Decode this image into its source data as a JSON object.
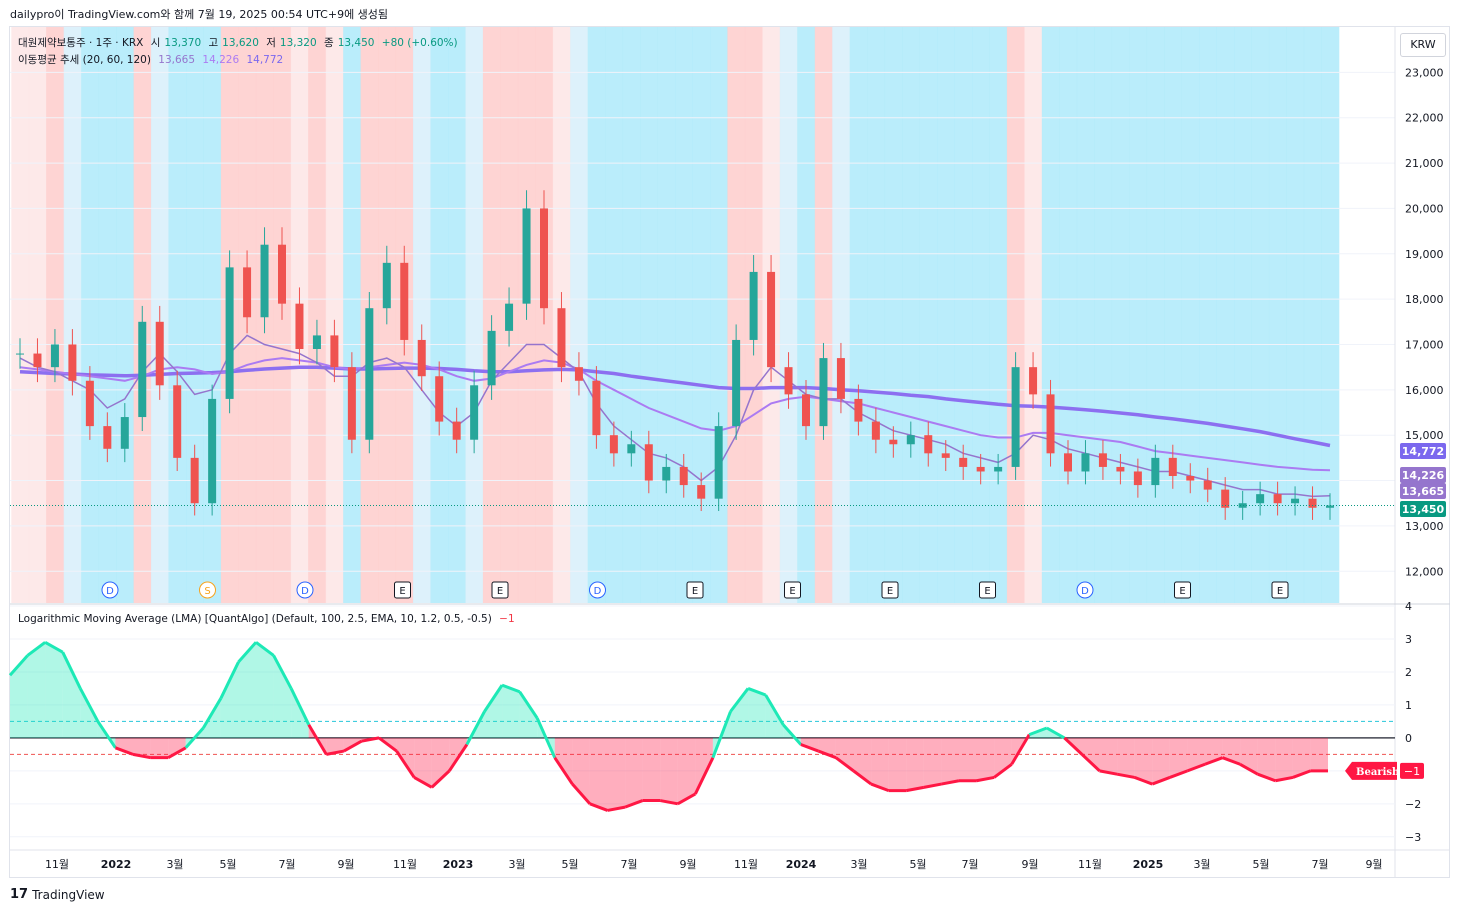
{
  "header": {
    "caption": "dailypro이 TradingView.com와 함께 7월 19, 2025 00:54 UTC+9에 생성됨"
  },
  "legend": {
    "symbol": "대원제약보통주 · 1주 · KRX",
    "open_label": "시",
    "open": "13,370",
    "high_label": "고",
    "high": "13,620",
    "low_label": "저",
    "low": "13,320",
    "close_label": "종",
    "close": "13,450",
    "change": "+80 (+0.60%)",
    "ma_title": "이동평균 추세 (20, 60, 120)",
    "ma20": "13,665",
    "ma60": "14,226",
    "ma120": "14,772"
  },
  "indicator": {
    "title": "Logarithmic Moving Average (LMA) [QuantAlgo] (Default, 100, 2.5, EMA, 10, 1.2, 0.5, -0.5)",
    "value": "−1",
    "tag": "Bearish",
    "tag_value": "−1"
  },
  "currency": "KRW",
  "brand": "TradingView",
  "colors": {
    "up": "#26a69a",
    "down": "#ef5350",
    "ma20": "#9575cd",
    "ma60": "#ab7bf2",
    "ma120": "#9c7ae8",
    "bull_band": "#b3ebfb",
    "bear_band": "#fecfce",
    "osc_pos": "#1de9b6",
    "osc_neg": "#ff1744"
  },
  "chart_data": [
    {
      "type": "candlestick",
      "x_ticks": [
        "11월",
        "2022",
        "3월",
        "5월",
        "7월",
        "9월",
        "11월",
        "2023",
        "3월",
        "5월",
        "7월",
        "9월",
        "11월",
        "2024",
        "3월",
        "5월",
        "7월",
        "9월",
        "11월",
        "2025",
        "3월",
        "5월",
        "7월",
        "9월"
      ],
      "y_ticks": [
        "12,000",
        "13,000",
        "14,000",
        "15,000",
        "16,000",
        "17,000",
        "18,000",
        "19,000",
        "20,000",
        "21,000",
        "22,000",
        "23,000"
      ],
      "ylim": [
        11300,
        24000
      ],
      "price_labels": {
        "ma120": "14,772",
        "ma60": "14,226",
        "ma20": "13,665",
        "last": "13,450"
      },
      "event_markers": [
        "D",
        "S",
        "D",
        "E",
        "E",
        "D",
        "E",
        "E",
        "E",
        "E",
        "D",
        "E",
        "E"
      ],
      "close_path": [
        16800,
        16500,
        17000,
        16200,
        15200,
        14700,
        15400,
        17500,
        16100,
        14500,
        13500,
        15800,
        18700,
        17600,
        19200,
        17900,
        16900,
        17200,
        16500,
        14900,
        17800,
        18800,
        17100,
        16300,
        15300,
        14900,
        16100,
        17300,
        17900,
        20000,
        17800,
        16500,
        16200,
        15000,
        14600,
        14800,
        14000,
        14300,
        13900,
        13600,
        15200,
        17100,
        18600,
        16500,
        15900,
        15200,
        16700,
        15800,
        15300,
        14900,
        14800,
        15000,
        14600,
        14500,
        14300,
        14200,
        14300,
        16500,
        15900,
        14600,
        14200,
        14600,
        14300,
        14200,
        13900,
        14500,
        14100,
        14000,
        13800,
        13400,
        13500,
        13700,
        13500,
        13600,
        13400,
        13450
      ],
      "ma20": [
        16700,
        16500,
        16400,
        16200,
        16000,
        15600,
        15800,
        16400,
        16800,
        16400,
        15900,
        16000,
        16800,
        17200,
        17000,
        16900,
        16800,
        16600,
        16300,
        16300,
        16600,
        16700,
        16500,
        16000,
        15500,
        15200,
        15500,
        16200,
        16600,
        17000,
        17000,
        16700,
        16400,
        15700,
        15200,
        14900,
        14600,
        14500,
        14300,
        14000,
        14300,
        15000,
        16000,
        16500,
        16200,
        15900,
        15800,
        15800,
        15500,
        15300,
        15100,
        15000,
        14900,
        14800,
        14600,
        14500,
        14400,
        14600,
        15000,
        14900,
        14700,
        14600,
        14500,
        14400,
        14300,
        14200,
        14200,
        14100,
        14000,
        13900,
        13800,
        13800,
        13700,
        13700,
        13650,
        13665
      ],
      "ma60": [
        16500,
        16450,
        16400,
        16350,
        16300,
        16250,
        16200,
        16300,
        16450,
        16500,
        16450,
        16350,
        16400,
        16550,
        16650,
        16700,
        16650,
        16600,
        16500,
        16450,
        16500,
        16550,
        16600,
        16550,
        16450,
        16300,
        16200,
        16250,
        16400,
        16550,
        16650,
        16600,
        16450,
        16200,
        16000,
        15800,
        15600,
        15450,
        15300,
        15150,
        15100,
        15200,
        15450,
        15700,
        15800,
        15850,
        15800,
        15750,
        15700,
        15600,
        15500,
        15400,
        15300,
        15200,
        15100,
        15000,
        14950,
        14950,
        15050,
        15050,
        15000,
        14950,
        14900,
        14850,
        14750,
        14650,
        14600,
        14550,
        14500,
        14450,
        14400,
        14350,
        14300,
        14270,
        14240,
        14226
      ],
      "ma120": [
        16400,
        16380,
        16360,
        16350,
        16330,
        16320,
        16310,
        16320,
        16340,
        16360,
        16370,
        16380,
        16400,
        16430,
        16460,
        16480,
        16500,
        16500,
        16480,
        16460,
        16460,
        16470,
        16480,
        16480,
        16470,
        16450,
        16420,
        16400,
        16400,
        16420,
        16440,
        16450,
        16440,
        16400,
        16360,
        16300,
        16250,
        16200,
        16150,
        16100,
        16050,
        16030,
        16030,
        16050,
        16050,
        16050,
        16030,
        16000,
        15980,
        15950,
        15920,
        15880,
        15850,
        15800,
        15760,
        15720,
        15680,
        15650,
        15640,
        15620,
        15590,
        15560,
        15530,
        15490,
        15450,
        15400,
        15360,
        15310,
        15260,
        15200,
        15140,
        15080,
        15000,
        14920,
        14850,
        14772
      ]
    },
    {
      "type": "area",
      "name": "Logarithmic Moving Average (LMA)",
      "y_ticks": [
        "4",
        "3",
        "2",
        "1",
        "0",
        "−1",
        "−2",
        "−3"
      ],
      "ylim": [
        -3.4,
        4
      ],
      "upper_threshold": 0.5,
      "lower_threshold": -0.5,
      "values": [
        1.9,
        2.5,
        2.9,
        2.6,
        1.5,
        0.5,
        -0.3,
        -0.5,
        -0.6,
        -0.6,
        -0.3,
        0.3,
        1.2,
        2.3,
        2.9,
        2.5,
        1.5,
        0.4,
        -0.5,
        -0.4,
        -0.1,
        0.0,
        -0.4,
        -1.2,
        -1.5,
        -1.0,
        -0.2,
        0.8,
        1.6,
        1.4,
        0.6,
        -0.6,
        -1.4,
        -2.0,
        -2.2,
        -2.1,
        -1.9,
        -1.9,
        -2.0,
        -1.7,
        -0.6,
        0.8,
        1.5,
        1.3,
        0.4,
        -0.2,
        -0.4,
        -0.6,
        -1.0,
        -1.4,
        -1.6,
        -1.6,
        -1.5,
        -1.4,
        -1.3,
        -1.3,
        -1.2,
        -0.8,
        0.1,
        0.3,
        0.0,
        -0.5,
        -1.0,
        -1.1,
        -1.2,
        -1.4,
        -1.2,
        -1.0,
        -0.8,
        -0.6,
        -0.8,
        -1.1,
        -1.3,
        -1.2,
        -1.0,
        -1.0
      ]
    }
  ]
}
